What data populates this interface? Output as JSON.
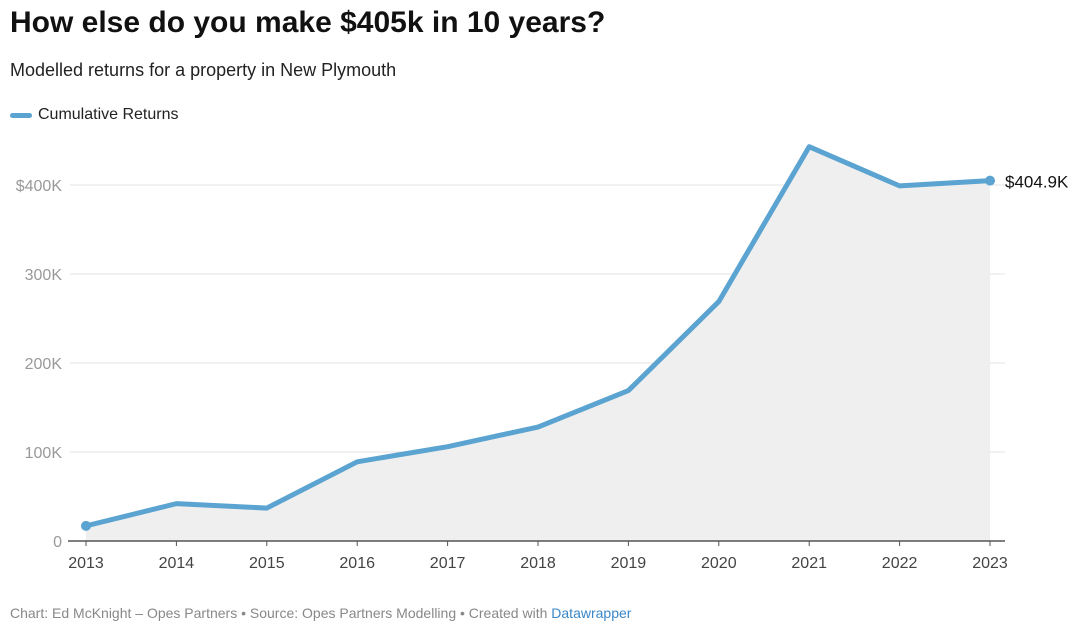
{
  "chart_data": {
    "type": "area",
    "title": "How else do you make $405k in 10 years?",
    "subtitle": "Modelled returns for a property in New Plymouth",
    "xlabel": "",
    "ylabel": "",
    "ylim": [
      0,
      450000
    ],
    "grid": true,
    "legend_placement": "top-left",
    "x": [
      "2013",
      "2014",
      "2015",
      "2016",
      "2017",
      "2018",
      "2019",
      "2020",
      "2021",
      "2022",
      "2023"
    ],
    "yticks": [
      0,
      100000,
      200000,
      300000,
      400000
    ],
    "ytick_labels": [
      "0",
      "100K",
      "200K",
      "300K",
      "$400K"
    ],
    "series": [
      {
        "name": "Cumulative Returns",
        "color": "#5ba3d0",
        "values": [
          17000,
          42000,
          37000,
          89000,
          106000,
          128000,
          169000,
          269000,
          443000,
          399000,
          404900
        ]
      }
    ],
    "annotations": [
      {
        "x": "2023",
        "label": "$404.9K"
      }
    ]
  },
  "footer": {
    "text": "Chart: Ed McKnight – Opes Partners • Source: Opes Partners Modelling • Created with ",
    "link": "Datawrapper"
  }
}
